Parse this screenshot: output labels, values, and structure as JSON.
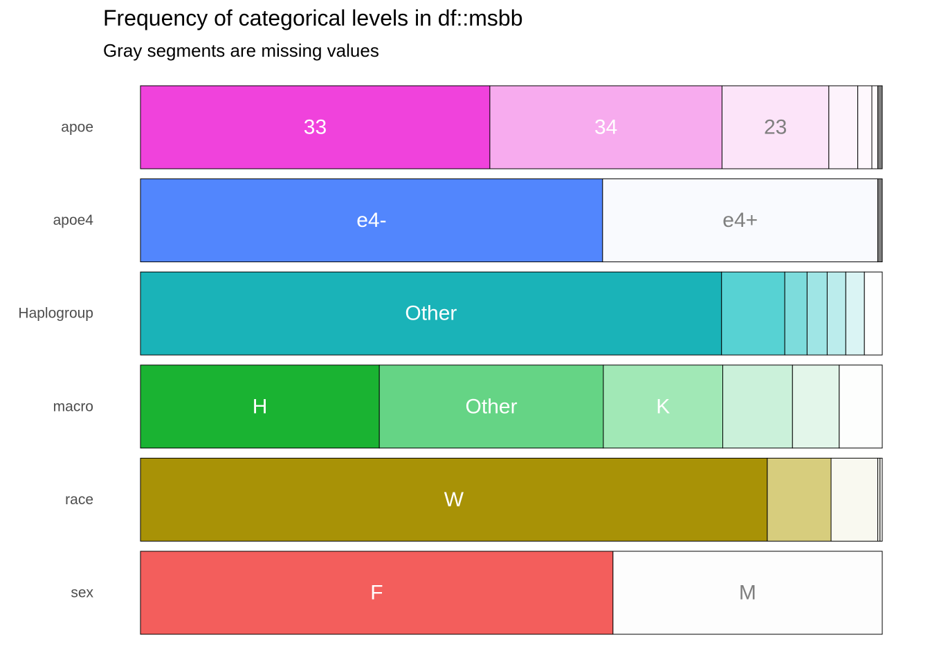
{
  "chart_data": {
    "type": "bar",
    "orientation": "horizontal-stacked-proportion",
    "title": "Frequency of categorical levels in df::msbb",
    "subtitle": "Gray segments are missing values",
    "xlabel": "",
    "ylabel": "",
    "xlim": [
      0,
      1
    ],
    "grid": false,
    "legend": "none",
    "missing_color": "#7f7f7f",
    "categories": [
      "apoe",
      "apoe4",
      "Haplogroup",
      "macro",
      "race",
      "sex"
    ],
    "series": [
      {
        "variable": "apoe",
        "segments": [
          {
            "label": "33",
            "value": 0.471,
            "color": "#f042dc",
            "text_color": "#ffffff"
          },
          {
            "label": "34",
            "value": 0.313,
            "color": "#f7abee",
            "text_color": "#ffffff"
          },
          {
            "label": "23",
            "value": 0.144,
            "color": "#fce4f9",
            "text_color": "#7f7f7f"
          },
          {
            "label": "",
            "value": 0.039,
            "color": "#fdf3fc",
            "text_color": "#7f7f7f"
          },
          {
            "label": "",
            "value": 0.019,
            "color": "#fef8fd",
            "text_color": "#7f7f7f"
          },
          {
            "label": "",
            "value": 0.008,
            "color": "#fffbfe",
            "text_color": "#7f7f7f"
          },
          {
            "label": "",
            "value": 0.006,
            "color": "#7f7f7f",
            "text_color": "#7f7f7f",
            "missing": true
          }
        ]
      },
      {
        "variable": "apoe4",
        "segments": [
          {
            "label": "e4-",
            "value": 0.623,
            "color": "#5286fd",
            "text_color": "#ffffff"
          },
          {
            "label": "e4+",
            "value": 0.371,
            "color": "#f9fafe",
            "text_color": "#7f7f7f"
          },
          {
            "label": "",
            "value": 0.006,
            "color": "#7f7f7f",
            "text_color": "#7f7f7f",
            "missing": true
          }
        ]
      },
      {
        "variable": "Haplogroup",
        "segments": [
          {
            "label": "Other",
            "value": 0.781,
            "color": "#1ab3b8",
            "text_color": "#ffffff"
          },
          {
            "label": "",
            "value": 0.085,
            "color": "#57d2d3",
            "text_color": "#ffffff"
          },
          {
            "label": "",
            "value": 0.03,
            "color": "#7ddcdc",
            "text_color": "#7f7f7f"
          },
          {
            "label": "",
            "value": 0.027,
            "color": "#9fe5e5",
            "text_color": "#7f7f7f"
          },
          {
            "label": "",
            "value": 0.025,
            "color": "#bbecec",
            "text_color": "#7f7f7f"
          },
          {
            "label": "",
            "value": 0.025,
            "color": "#daf4f4",
            "text_color": "#7f7f7f"
          },
          {
            "label": "",
            "value": 0.024,
            "color": "#fdfefe",
            "text_color": "#7f7f7f"
          }
        ]
      },
      {
        "variable": "macro",
        "segments": [
          {
            "label": "H",
            "value": 0.322,
            "color": "#1ab332",
            "text_color": "#ffffff"
          },
          {
            "label": "Other",
            "value": 0.302,
            "color": "#65d485",
            "text_color": "#ffffff"
          },
          {
            "label": "K",
            "value": 0.161,
            "color": "#a1e8b6",
            "text_color": "#ffffff"
          },
          {
            "label": "",
            "value": 0.094,
            "color": "#cbf1da",
            "text_color": "#7f7f7f"
          },
          {
            "label": "",
            "value": 0.063,
            "color": "#e3f6ea",
            "text_color": "#7f7f7f"
          },
          {
            "label": "",
            "value": 0.058,
            "color": "#fdfefd",
            "text_color": "#7f7f7f"
          }
        ]
      },
      {
        "variable": "race",
        "segments": [
          {
            "label": "W",
            "value": 0.845,
            "color": "#a89206",
            "text_color": "#ffffff"
          },
          {
            "label": "",
            "value": 0.086,
            "color": "#d7cd7d",
            "text_color": "#7f7f7f"
          },
          {
            "label": "",
            "value": 0.063,
            "color": "#f9f9f0",
            "text_color": "#7f7f7f"
          },
          {
            "label": "",
            "value": 0.003,
            "color": "#fbfbf5",
            "text_color": "#7f7f7f"
          },
          {
            "label": "",
            "value": 0.003,
            "color": "#fdfdfa",
            "text_color": "#7f7f7f"
          }
        ]
      },
      {
        "variable": "sex",
        "segments": [
          {
            "label": "F",
            "value": 0.637,
            "color": "#f35e5c",
            "text_color": "#ffffff"
          },
          {
            "label": "M",
            "value": 0.363,
            "color": "#fdfdfd",
            "text_color": "#7f7f7f"
          }
        ]
      }
    ]
  }
}
